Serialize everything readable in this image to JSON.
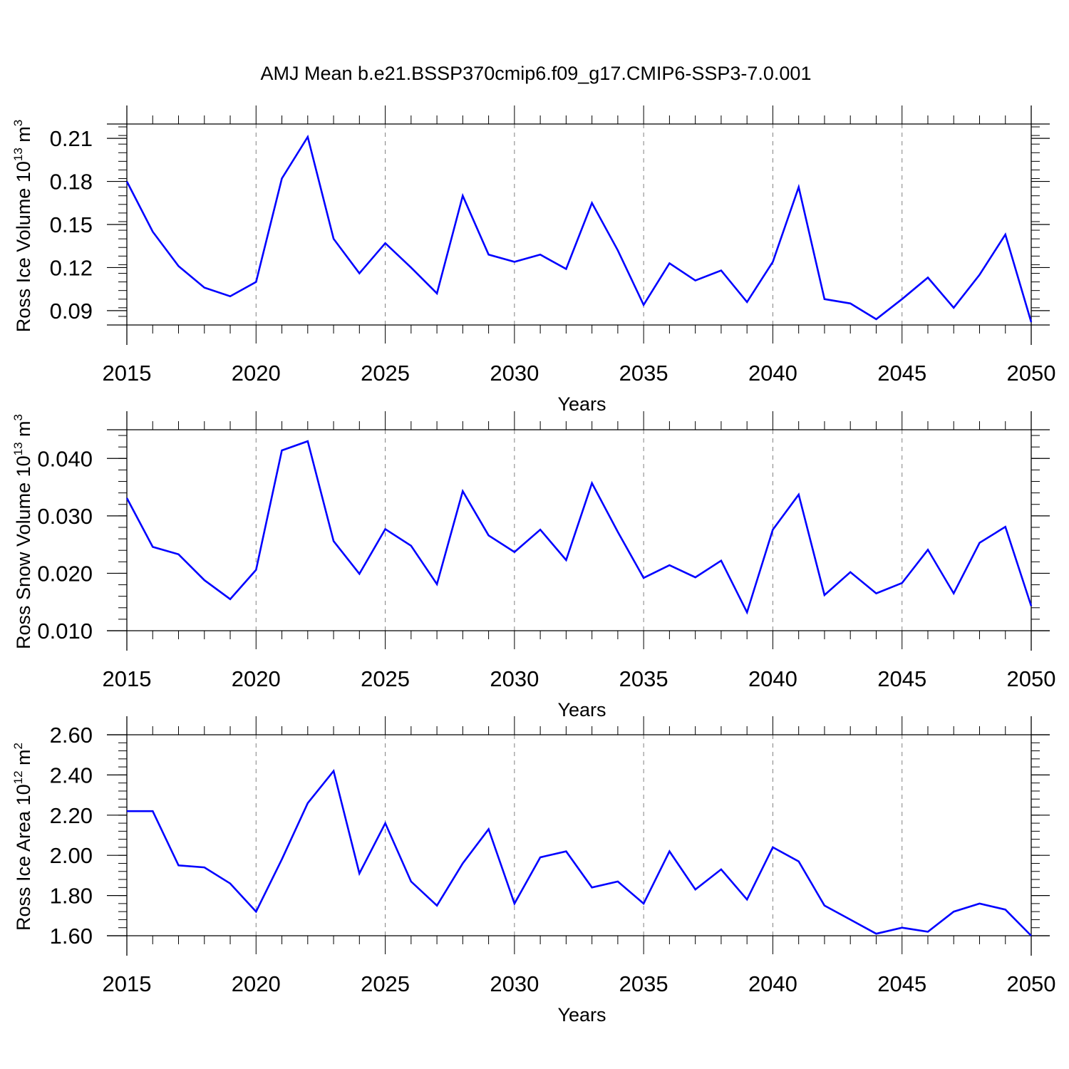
{
  "figure_title": "AMJ Mean b.e21.BSSP370cmip6.f09_g17.CMIP6-SSP3-7.0.001",
  "colors": {
    "line": "#0000ff",
    "axes": "#000000",
    "grid": "#808080"
  },
  "chart_data": [
    {
      "type": "line",
      "xlabel": "Years",
      "ylabel": {
        "text": "Ross Ice Volume 10",
        "sup": "13",
        "unit": " m",
        "unit_sup": "3"
      },
      "xlim": [
        2015,
        2050
      ],
      "ylim": [
        0.08,
        0.22
      ],
      "x_ticks": [
        2015,
        2020,
        2025,
        2030,
        2035,
        2040,
        2045,
        2050
      ],
      "y_ticks": [
        0.09,
        0.12,
        0.15,
        0.18,
        0.21
      ],
      "y_tick_labels": [
        "0.09",
        "0.12",
        "0.15",
        "0.18",
        "0.21"
      ],
      "y_minor_step": 0.006,
      "grid": "vertical dashed at major x ticks",
      "x": [
        2015,
        2016,
        2017,
        2018,
        2019,
        2020,
        2021,
        2022,
        2023,
        2024,
        2025,
        2026,
        2027,
        2028,
        2029,
        2030,
        2031,
        2032,
        2033,
        2034,
        2035,
        2036,
        2037,
        2038,
        2039,
        2040,
        2041,
        2042,
        2043,
        2044,
        2045,
        2046,
        2047,
        2048,
        2049,
        2050
      ],
      "values": [
        0.18,
        0.145,
        0.121,
        0.106,
        0.1,
        0.11,
        0.182,
        0.211,
        0.14,
        0.116,
        0.137,
        0.12,
        0.102,
        0.17,
        0.129,
        0.124,
        0.129,
        0.119,
        0.165,
        0.132,
        0.094,
        0.123,
        0.111,
        0.118,
        0.096,
        0.124,
        0.176,
        0.098,
        0.095,
        0.084,
        0.098,
        0.113,
        0.092,
        0.115,
        0.143,
        0.082
      ]
    },
    {
      "type": "line",
      "xlabel": "Years",
      "ylabel": {
        "text": "Ross Snow Volume 10",
        "sup": "13",
        "unit": " m",
        "unit_sup": "3"
      },
      "xlim": [
        2015,
        2050
      ],
      "ylim": [
        0.01,
        0.045
      ],
      "x_ticks": [
        2015,
        2020,
        2025,
        2030,
        2035,
        2040,
        2045,
        2050
      ],
      "y_ticks": [
        0.01,
        0.02,
        0.03,
        0.04
      ],
      "y_tick_labels": [
        "0.010",
        "0.020",
        "0.030",
        "0.040"
      ],
      "y_minor_step": 0.002,
      "grid": "vertical dashed at major x ticks",
      "x": [
        2015,
        2016,
        2017,
        2018,
        2019,
        2020,
        2021,
        2022,
        2023,
        2024,
        2025,
        2026,
        2027,
        2028,
        2029,
        2030,
        2031,
        2032,
        2033,
        2034,
        2035,
        2036,
        2037,
        2038,
        2039,
        2040,
        2041,
        2042,
        2043,
        2044,
        2045,
        2046,
        2047,
        2048,
        2049,
        2050
      ],
      "values": [
        0.0331,
        0.0246,
        0.0233,
        0.0188,
        0.0155,
        0.0206,
        0.0414,
        0.043,
        0.0256,
        0.0199,
        0.0277,
        0.0248,
        0.0181,
        0.0343,
        0.0266,
        0.0237,
        0.0276,
        0.0223,
        0.0357,
        0.0272,
        0.0192,
        0.0214,
        0.0193,
        0.0222,
        0.0132,
        0.0276,
        0.0337,
        0.0162,
        0.0202,
        0.0165,
        0.0183,
        0.0241,
        0.0165,
        0.0253,
        0.0281,
        0.0143
      ]
    },
    {
      "type": "line",
      "xlabel": "Years",
      "ylabel": {
        "text": "Ross Ice Area 10",
        "sup": "12",
        "unit": " m",
        "unit_sup": "2"
      },
      "xlim": [
        2015,
        2050
      ],
      "ylim": [
        1.6,
        2.6
      ],
      "x_ticks": [
        2015,
        2020,
        2025,
        2030,
        2035,
        2040,
        2045,
        2050
      ],
      "y_ticks": [
        1.6,
        1.8,
        2.0,
        2.2,
        2.4,
        2.6
      ],
      "y_tick_labels": [
        "1.60",
        "1.80",
        "2.00",
        "2.20",
        "2.40",
        "2.60"
      ],
      "y_minor_step": 0.04,
      "grid": "vertical dashed at major x ticks",
      "x": [
        2015,
        2016,
        2017,
        2018,
        2019,
        2020,
        2021,
        2022,
        2023,
        2024,
        2025,
        2026,
        2027,
        2028,
        2029,
        2030,
        2031,
        2032,
        2033,
        2034,
        2035,
        2036,
        2037,
        2038,
        2039,
        2040,
        2041,
        2042,
        2043,
        2044,
        2045,
        2046,
        2047,
        2048,
        2049,
        2050
      ],
      "values": [
        2.22,
        2.22,
        1.95,
        1.94,
        1.86,
        1.72,
        1.98,
        2.26,
        2.42,
        1.91,
        2.16,
        1.87,
        1.75,
        1.96,
        2.13,
        1.76,
        1.99,
        2.02,
        1.84,
        1.87,
        1.76,
        2.02,
        1.83,
        1.93,
        1.78,
        2.04,
        1.97,
        1.75,
        1.68,
        1.61,
        1.64,
        1.62,
        1.72,
        1.76,
        1.73,
        1.6
      ]
    }
  ]
}
